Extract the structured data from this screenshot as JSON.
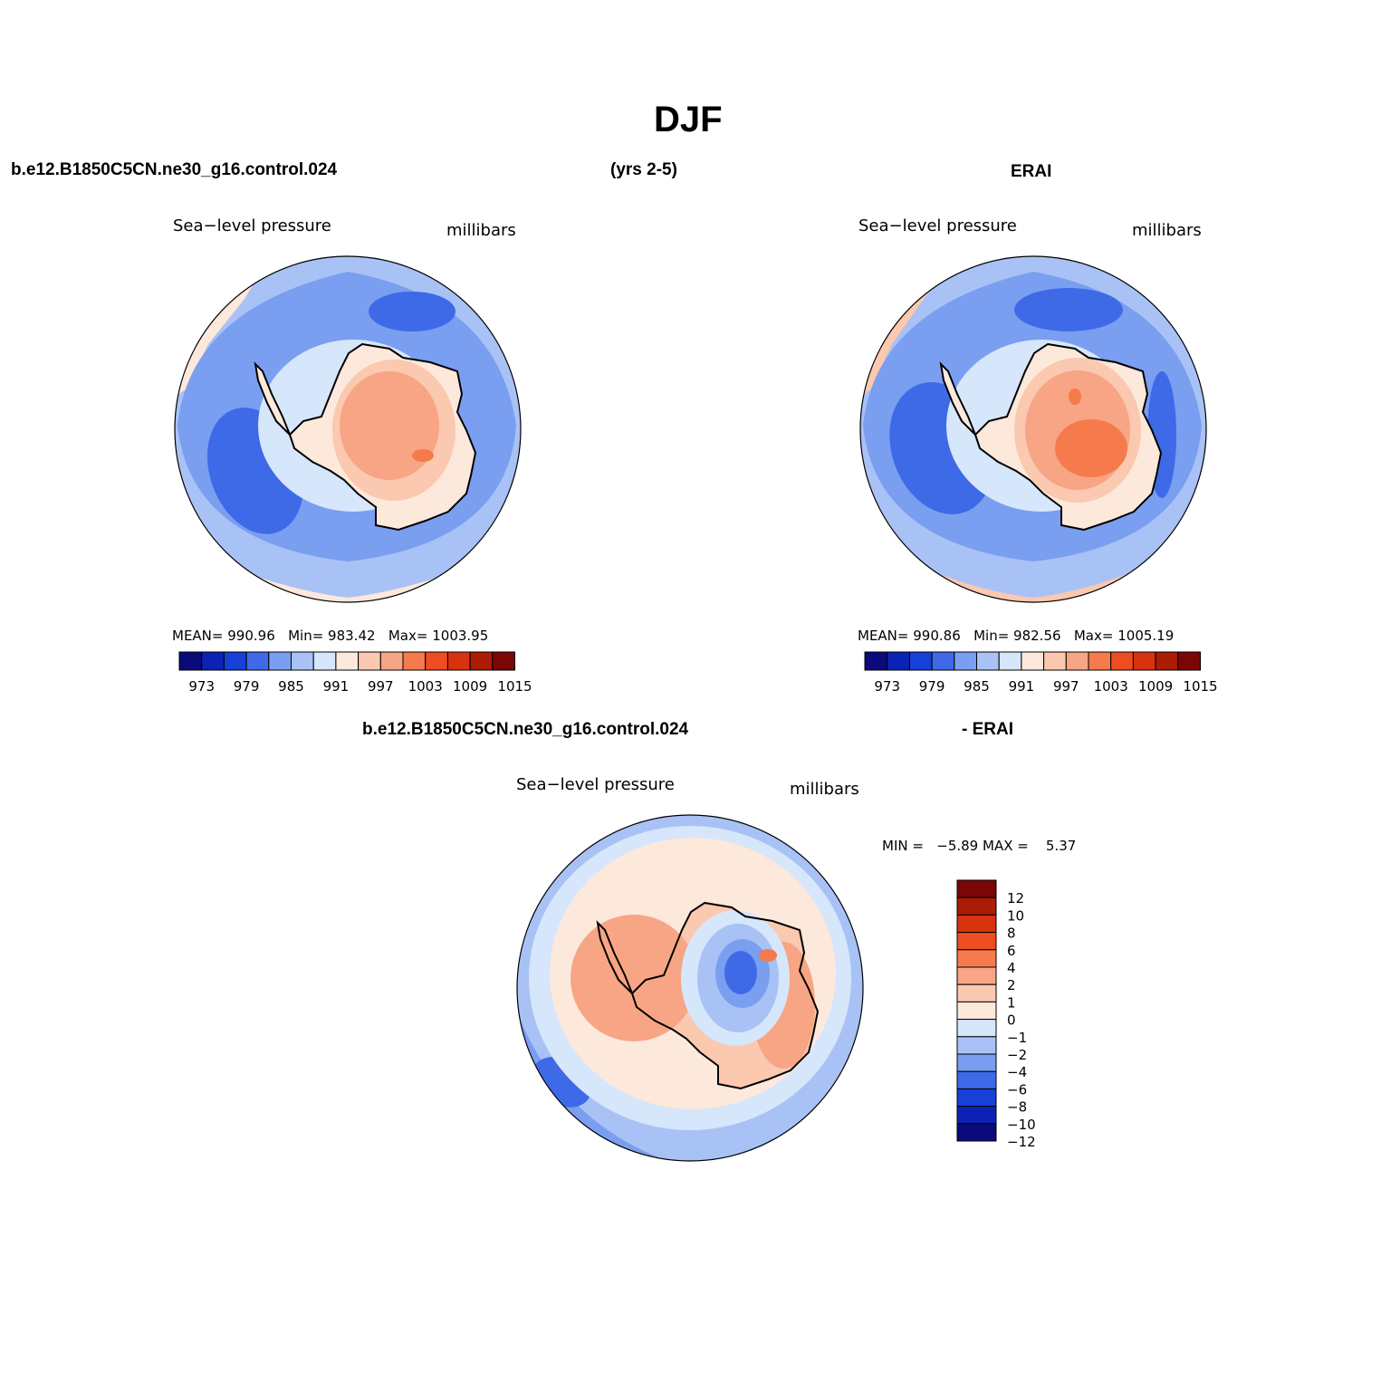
{
  "title": "DJF",
  "header": {
    "case_name": "b.e12.B1850C5CN.ne30_g16.control.024",
    "years": "(yrs 2-5)",
    "obs_name": "ERAI",
    "diff_case": "b.e12.B1850C5CN.ne30_g16.control.024",
    "diff_obs": "- ERAI"
  },
  "colors": {
    "abs_scale": [
      "#0a0a7a",
      "#0c22b4",
      "#1640d8",
      "#3e6ae8",
      "#7a9ef0",
      "#a9c2f5",
      "#d6e6fb",
      "#fde8dc",
      "#fbc8b0",
      "#f7a584",
      "#f57b4c",
      "#ee4d22",
      "#d8320e",
      "#aa1c04",
      "#7a0606"
    ],
    "diff_scale": [
      "#0a0a7a",
      "#0c22b4",
      "#1640d8",
      "#3e6ae8",
      "#7a9ef0",
      "#a9c2f5",
      "#d6e6fb",
      "#fde8dc",
      "#fbc8b0",
      "#f7a584",
      "#f57b4c",
      "#ee4d22",
      "#d8320e",
      "#aa1c04",
      "#7a0606"
    ]
  },
  "chart_data": [
    {
      "type": "polar-contour-map",
      "name": "model",
      "left_label": "Sea−level pressure",
      "right_label": "millibars",
      "mean_label": "MEAN=",
      "mean": "990.96",
      "min_label": "Min=",
      "min": "983.42",
      "max_label": "Max=",
      "max": "1003.95",
      "levels": [
        "973",
        "979",
        "985",
        "991",
        "997",
        "1003",
        "1009",
        "1015"
      ]
    },
    {
      "type": "polar-contour-map",
      "name": "obs",
      "left_label": "Sea−level pressure",
      "right_label": "millibars",
      "mean_label": "MEAN=",
      "mean": "990.86",
      "min_label": "Min=",
      "min": "982.56",
      "max_label": "Max=",
      "max": "1005.19",
      "levels": [
        "973",
        "979",
        "985",
        "991",
        "997",
        "1003",
        "1009",
        "1015"
      ]
    },
    {
      "type": "polar-contour-map",
      "name": "difference",
      "left_label": "Sea−level pressure",
      "right_label": "millibars",
      "min_label": "MIN =",
      "min": "−5.89",
      "max_label": "MAX =",
      "max": "5.37",
      "levels": [
        "12",
        "10",
        "8",
        "6",
        "4",
        "2",
        "1",
        "0",
        "−1",
        "−2",
        "−4",
        "−6",
        "−8",
        "−10",
        "−12"
      ]
    }
  ]
}
